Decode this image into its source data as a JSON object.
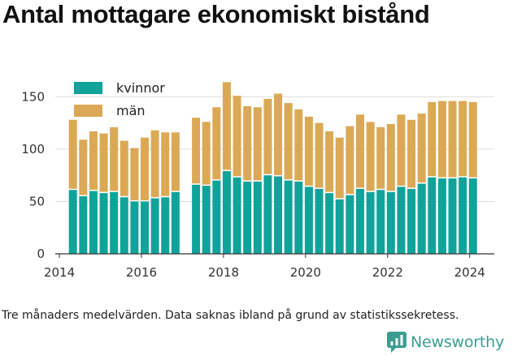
{
  "title": "Antal mottagare ekonomiskt bistånd",
  "caption": "Tre månaders medelvärden. Data saknas ibland på grund av statistikssekretess.",
  "brand": "Newsworthy",
  "colors": {
    "kvinnor": "#0fa39a",
    "man": "#dba955",
    "grid": "#dddddd",
    "axis": "#333333",
    "brand": "#3b9d91"
  },
  "chart_data": {
    "type": "bar",
    "stacked": true,
    "legend_position": "top-left",
    "grid": true,
    "ylim": [
      0,
      165
    ],
    "yticks": [
      0,
      50,
      100,
      150
    ],
    "xticks": [
      2014,
      2016,
      2018,
      2020,
      2022,
      2024
    ],
    "xlim": [
      2013.9,
      2024.6
    ],
    "x": [
      2014.33,
      2014.58,
      2014.83,
      2015.08,
      2015.33,
      2015.58,
      2015.83,
      2016.08,
      2016.33,
      2016.58,
      2016.83,
      2017.33,
      2017.58,
      2017.83,
      2018.08,
      2018.33,
      2018.58,
      2018.83,
      2019.08,
      2019.33,
      2019.58,
      2019.83,
      2020.08,
      2020.33,
      2020.58,
      2020.83,
      2021.08,
      2021.33,
      2021.58,
      2021.83,
      2022.08,
      2022.33,
      2022.58,
      2022.83,
      2023.08,
      2023.33,
      2023.58,
      2023.83,
      2024.08
    ],
    "series": [
      {
        "name": "kvinnor",
        "values": [
          61,
          55,
          60,
          58,
          59,
          54,
          50,
          50,
          53,
          54,
          59,
          66,
          65,
          70,
          79,
          73,
          69,
          69,
          75,
          74,
          70,
          69,
          64,
          62,
          58,
          52,
          56,
          62,
          59,
          61,
          59,
          64,
          62,
          67,
          73,
          72,
          72,
          73,
          72
        ]
      },
      {
        "name": "män",
        "values": [
          67,
          54,
          57,
          57,
          62,
          54,
          51,
          61,
          65,
          62,
          57,
          64,
          61,
          70,
          85,
          78,
          72,
          71,
          73,
          79,
          74,
          69,
          67,
          63,
          59,
          59,
          66,
          71,
          67,
          60,
          65,
          69,
          66,
          67,
          72,
          74,
          74,
          73,
          73
        ]
      }
    ]
  }
}
